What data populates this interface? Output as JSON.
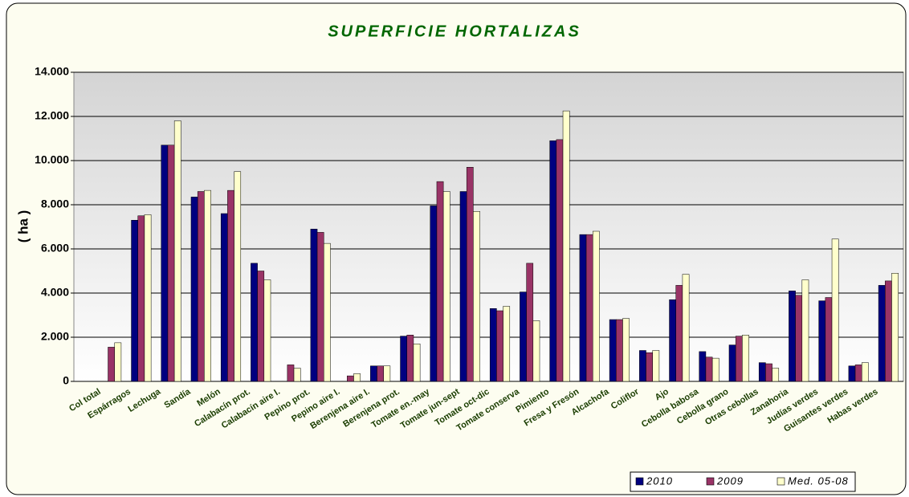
{
  "chart_data": {
    "type": "bar",
    "title": "SUPERFICIE HORTALIZAS",
    "y_label": "( ha )",
    "categories": [
      "Col total",
      "Espárragos",
      "Lechuga",
      "Sandía",
      "Melón",
      "Calabacín prot.",
      "Calabacín aire l.",
      "Pepino prot.",
      "Pepino aire l.",
      "Berenjena aire l.",
      "Berenjena prot.",
      "Tomate en.-may",
      "Tomate jun-sept",
      "Tomate oct-dic",
      "Tomate conserva",
      "Pimiento",
      "Fresa y Fresón",
      "Alcachofa",
      "Coliflor",
      "Ajo",
      "Cebolla babosa",
      "Cebolla grano",
      "Otras cebollas",
      "Zanahoria",
      "Judías verdes",
      "Guisantes verdes",
      "Habas verdes"
    ],
    "series": [
      {
        "name": "2010",
        "color": "#000080",
        "values": [
          null,
          7300,
          10700,
          8350,
          7600,
          5350,
          null,
          6900,
          null,
          700,
          2050,
          7950,
          8600,
          3300,
          4050,
          10900,
          6650,
          2800,
          1400,
          3700,
          1350,
          1650,
          850,
          4100,
          3650,
          700,
          4350
        ]
      },
      {
        "name": "2009",
        "color": "#993366",
        "values": [
          1550,
          7500,
          10700,
          8600,
          8650,
          5000,
          750,
          6750,
          250,
          700,
          2100,
          9050,
          9700,
          3200,
          5350,
          10950,
          6650,
          2800,
          1300,
          4350,
          1100,
          2050,
          800,
          3900,
          3800,
          750,
          4550
        ]
      },
      {
        "name": "Med. 05-08",
        "color": "#ffffcc",
        "values": [
          1750,
          7550,
          11800,
          8650,
          9500,
          4600,
          600,
          6250,
          350,
          700,
          1700,
          8600,
          7700,
          3400,
          2750,
          12250,
          6800,
          2850,
          1400,
          4850,
          1050,
          2100,
          600,
          4600,
          6450,
          850,
          4900
        ]
      }
    ],
    "ylim": [
      0,
      14000
    ],
    "yticks": [
      0,
      {
        "value": 2000,
        "label": "2.000"
      },
      {
        "value": 4000,
        "label": "4.000"
      },
      {
        "value": 6000,
        "label": "6.000"
      },
      {
        "value": 8000,
        "label": "8.000"
      },
      {
        "value": 10000,
        "label": "10.000"
      },
      {
        "value": 12000,
        "label": "12.000"
      },
      {
        "value": 14000,
        "label": "14.000"
      }
    ],
    "grid": true
  }
}
